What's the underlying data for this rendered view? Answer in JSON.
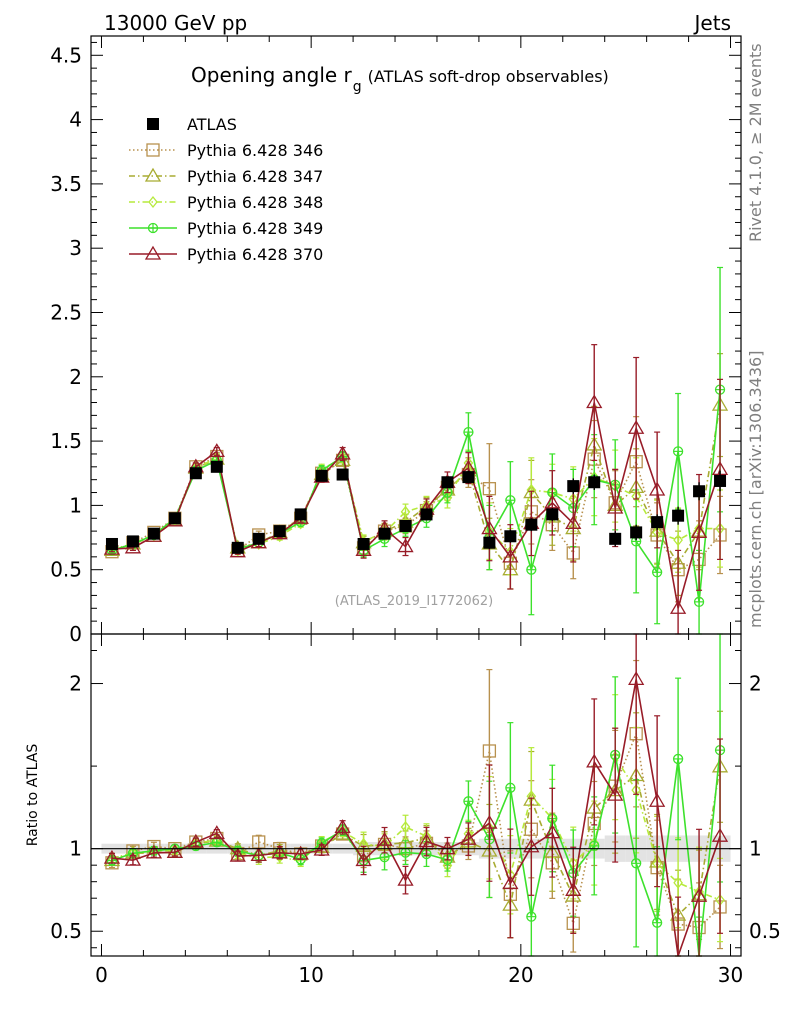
{
  "header": {
    "energy": "13000 GeV pp",
    "category": "Jets"
  },
  "side_text": {
    "rivet": "Rivet 4.1.0, ≥ 2M events",
    "source": "mcplots.cern.ch [arXiv:1306.3436]"
  },
  "watermark": "(ATLAS_2019_I1772062)",
  "chart_data": [
    {
      "type": "scatter",
      "title_main": "Opening angle r",
      "title_sub": "g",
      "title_rest": "(ATLAS soft-drop observables)",
      "xlim": [
        -0.5,
        30.5
      ],
      "ylim": [
        0,
        4.65
      ],
      "y_ticks": [
        0,
        0.5,
        1,
        1.5,
        2,
        2.5,
        3,
        3.5,
        4,
        4.5
      ],
      "y_tick_labels": [
        "0",
        "0.5",
        "1",
        "1.5",
        "2",
        "2.5",
        "3",
        "3.5",
        "4",
        "4.5"
      ],
      "x": [
        0.5,
        1.5,
        2.5,
        3.5,
        4.5,
        5.5,
        6.5,
        7.5,
        8.5,
        9.5,
        10.5,
        11.5,
        12.5,
        13.5,
        14.5,
        15.5,
        16.5,
        17.5,
        18.5,
        19.5,
        20.5,
        21.5,
        22.5,
        23.5,
        24.5,
        25.5,
        26.5,
        27.5,
        28.5,
        29.5
      ],
      "series": [
        {
          "name": "ATLAS",
          "color": "#000000",
          "marker": "square-filled",
          "line": "none",
          "values": [
            0.7,
            0.72,
            0.78,
            0.9,
            1.25,
            1.3,
            0.67,
            0.74,
            0.8,
            0.93,
            1.23,
            1.24,
            0.7,
            0.78,
            0.84,
            0.93,
            1.18,
            1.22,
            0.71,
            0.76,
            0.85,
            0.93,
            1.15,
            1.18,
            0.74,
            0.79,
            0.87,
            0.92,
            1.11,
            1.19
          ],
          "errors": [
            0.02,
            0.02,
            0.02,
            0.02,
            0.03,
            0.03,
            0.02,
            0.02,
            0.02,
            0.03,
            0.03,
            0.03,
            0.03,
            0.03,
            0.03,
            0.04,
            0.04,
            0.05,
            0.05,
            0.05,
            0.05,
            0.05,
            0.06,
            0.06,
            0.06,
            0.06,
            0.06,
            0.07,
            0.07,
            0.08
          ]
        },
        {
          "name": "Pythia 6.428 346",
          "color": "#b8914e",
          "marker": "square-open",
          "line": "dotted",
          "values": [
            0.64,
            0.71,
            0.79,
            0.9,
            1.3,
            1.38,
            0.65,
            0.77,
            0.8,
            0.9,
            1.25,
            1.35,
            0.67,
            0.8,
            0.84,
            0.96,
            1.14,
            1.24,
            1.13,
            0.55,
            0.95,
            0.85,
            0.63,
            1.36,
            1.02,
            1.34,
            0.77,
            0.5,
            0.58,
            0.77
          ],
          "errors": [
            0.02,
            0.02,
            0.02,
            0.02,
            0.03,
            0.03,
            0.02,
            0.03,
            0.03,
            0.03,
            0.04,
            0.04,
            0.05,
            0.06,
            0.06,
            0.07,
            0.08,
            0.1,
            0.35,
            0.2,
            0.25,
            0.2,
            0.2,
            0.3,
            0.25,
            0.35,
            0.25,
            0.25,
            0.3,
            0.3
          ]
        },
        {
          "name": "Pythia 6.428 347",
          "color": "#a8ac32",
          "marker": "triangle-open",
          "line": "dashdot",
          "values": [
            0.65,
            0.7,
            0.76,
            0.88,
            1.29,
            1.36,
            0.67,
            0.71,
            0.79,
            0.9,
            1.24,
            1.35,
            0.71,
            0.8,
            0.87,
            0.99,
            1.12,
            1.27,
            0.7,
            0.5,
            1.1,
            0.91,
            0.82,
            1.47,
            1.0,
            1.14,
            0.8,
            0.55,
            0.8,
            1.78
          ],
          "errors": [
            0.02,
            0.02,
            0.02,
            0.02,
            0.03,
            0.03,
            0.02,
            0.03,
            0.03,
            0.03,
            0.04,
            0.04,
            0.05,
            0.06,
            0.06,
            0.07,
            0.08,
            0.1,
            0.2,
            0.15,
            0.25,
            0.22,
            0.25,
            0.3,
            0.28,
            0.3,
            0.25,
            0.25,
            0.3,
            0.4
          ]
        },
        {
          "name": "Pythia 6.428 348",
          "color": "#b6ea3c",
          "marker": "diamond-open",
          "line": "dashdot",
          "values": [
            0.66,
            0.7,
            0.77,
            0.89,
            1.29,
            1.37,
            0.65,
            0.7,
            0.76,
            0.86,
            1.28,
            1.37,
            0.72,
            0.79,
            0.95,
            1.0,
            1.06,
            1.33,
            0.8,
            0.64,
            1.12,
            1.1,
            1.05,
            1.22,
            1.15,
            1.07,
            0.79,
            0.73,
            0.82,
            0.82
          ],
          "errors": [
            0.02,
            0.02,
            0.02,
            0.02,
            0.03,
            0.03,
            0.02,
            0.03,
            0.03,
            0.03,
            0.04,
            0.04,
            0.05,
            0.06,
            0.06,
            0.07,
            0.08,
            0.1,
            0.22,
            0.18,
            0.25,
            0.22,
            0.25,
            0.3,
            0.28,
            0.3,
            0.25,
            0.25,
            0.3,
            0.3
          ]
        },
        {
          "name": "Pythia 6.428 349",
          "color": "#3de12c",
          "marker": "circle-cross-open",
          "line": "solid",
          "values": [
            0.65,
            0.7,
            0.77,
            0.9,
            1.27,
            1.35,
            0.66,
            0.71,
            0.78,
            0.87,
            1.27,
            1.38,
            0.65,
            0.74,
            0.82,
            0.9,
            1.1,
            1.57,
            0.75,
            1.04,
            0.5,
            1.1,
            0.98,
            1.2,
            1.16,
            0.72,
            0.48,
            1.42,
            0.25,
            1.9
          ],
          "errors": [
            0.02,
            0.02,
            0.02,
            0.02,
            0.03,
            0.03,
            0.02,
            0.03,
            0.03,
            0.03,
            0.04,
            0.04,
            0.05,
            0.06,
            0.06,
            0.07,
            0.08,
            0.15,
            0.25,
            0.3,
            0.35,
            0.3,
            0.3,
            0.35,
            0.35,
            0.4,
            0.4,
            0.45,
            0.4,
            0.95
          ]
        },
        {
          "name": "Pythia 6.428 370",
          "color": "#981c28",
          "marker": "triangle-open",
          "line": "solid",
          "values": [
            0.66,
            0.67,
            0.76,
            0.88,
            1.3,
            1.42,
            0.64,
            0.71,
            0.78,
            0.9,
            1.22,
            1.4,
            0.65,
            0.82,
            0.68,
            0.97,
            1.18,
            1.29,
            0.82,
            0.6,
            0.86,
            1.02,
            0.86,
            1.8,
            0.98,
            1.6,
            1.12,
            0.2,
            0.79,
            1.28
          ],
          "errors": [
            0.02,
            0.02,
            0.02,
            0.02,
            0.03,
            0.03,
            0.02,
            0.03,
            0.03,
            0.03,
            0.04,
            0.05,
            0.06,
            0.06,
            0.07,
            0.08,
            0.08,
            0.12,
            0.25,
            0.25,
            0.25,
            0.25,
            0.3,
            0.45,
            0.3,
            0.55,
            0.45,
            0.45,
            0.45,
            0.7
          ]
        }
      ]
    },
    {
      "type": "scatter",
      "ylabel": "Ratio to ATLAS",
      "xlim": [
        -0.5,
        30.5
      ],
      "ylim": [
        0.35,
        2.3
      ],
      "reference": 1,
      "y_ticks": [
        0.5,
        1,
        2
      ],
      "y_tick_labels": [
        "0.5",
        "1",
        "2"
      ],
      "x_ticks": [
        0,
        10,
        20,
        30
      ],
      "x_tick_labels": [
        "0",
        "10",
        "20",
        "30"
      ],
      "band_color": "#e3e3e3",
      "band_errors": [
        0.03,
        0.03,
        0.03,
        0.03,
        0.03,
        0.03,
        0.03,
        0.03,
        0.03,
        0.03,
        0.03,
        0.03,
        0.04,
        0.04,
        0.04,
        0.04,
        0.04,
        0.04,
        0.06,
        0.06,
        0.06,
        0.06,
        0.06,
        0.06,
        0.08,
        0.08,
        0.08,
        0.08,
        0.08,
        0.08
      ]
    }
  ]
}
